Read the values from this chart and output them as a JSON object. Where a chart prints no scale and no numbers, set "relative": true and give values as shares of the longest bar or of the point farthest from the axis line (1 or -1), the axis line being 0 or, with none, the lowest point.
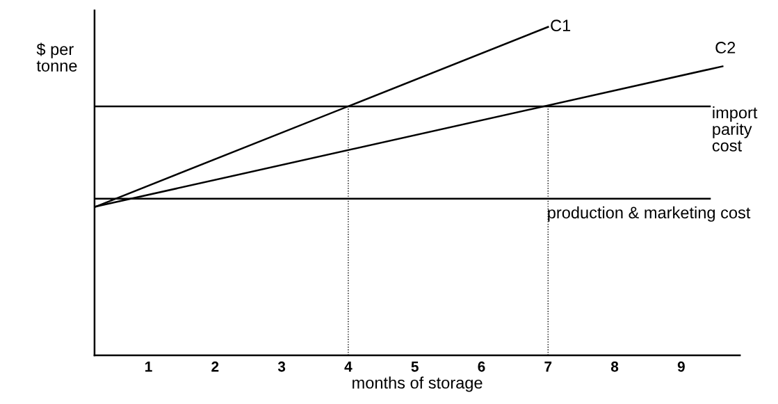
{
  "chart_data": {
    "type": "line",
    "xlabel": "months of storage",
    "ylabel": "$ per\ntonne",
    "relative": true,
    "xlim": [
      0.19,
      9.88
    ],
    "xticks": [
      1,
      2,
      3,
      4,
      5,
      6,
      7,
      8,
      9
    ],
    "tick_labels": "x",
    "grid": false,
    "legend": false,
    "marker": "none",
    "series": [
      {
        "name": "C1",
        "color": "#000000",
        "x": [
          0.21,
          7.0
        ],
        "values": [
          0.453,
          1
        ]
      },
      {
        "name": "C2",
        "color": "#000000",
        "x": [
          0.21,
          9.62
        ],
        "values": [
          0.453,
          0.88
        ]
      },
      {
        "name": "import\nparity\ncost",
        "color": "#000000",
        "x": [
          0.21,
          9.43
        ],
        "values": [
          0.758,
          0.758
        ]
      },
      {
        "name": "production & marketing cost",
        "color": "#000000",
        "x": [
          0.21,
          9.43
        ],
        "values": [
          0.477,
          0.477
        ]
      },
      {
        "color": "#000000",
        "line_style": "dotted",
        "x": [
          4,
          4
        ],
        "values": [
          0,
          0.758
        ]
      },
      {
        "color": "#000000",
        "line_style": "dotted",
        "x": [
          7,
          7
        ],
        "values": [
          0,
          0.758
        ]
      }
    ]
  }
}
